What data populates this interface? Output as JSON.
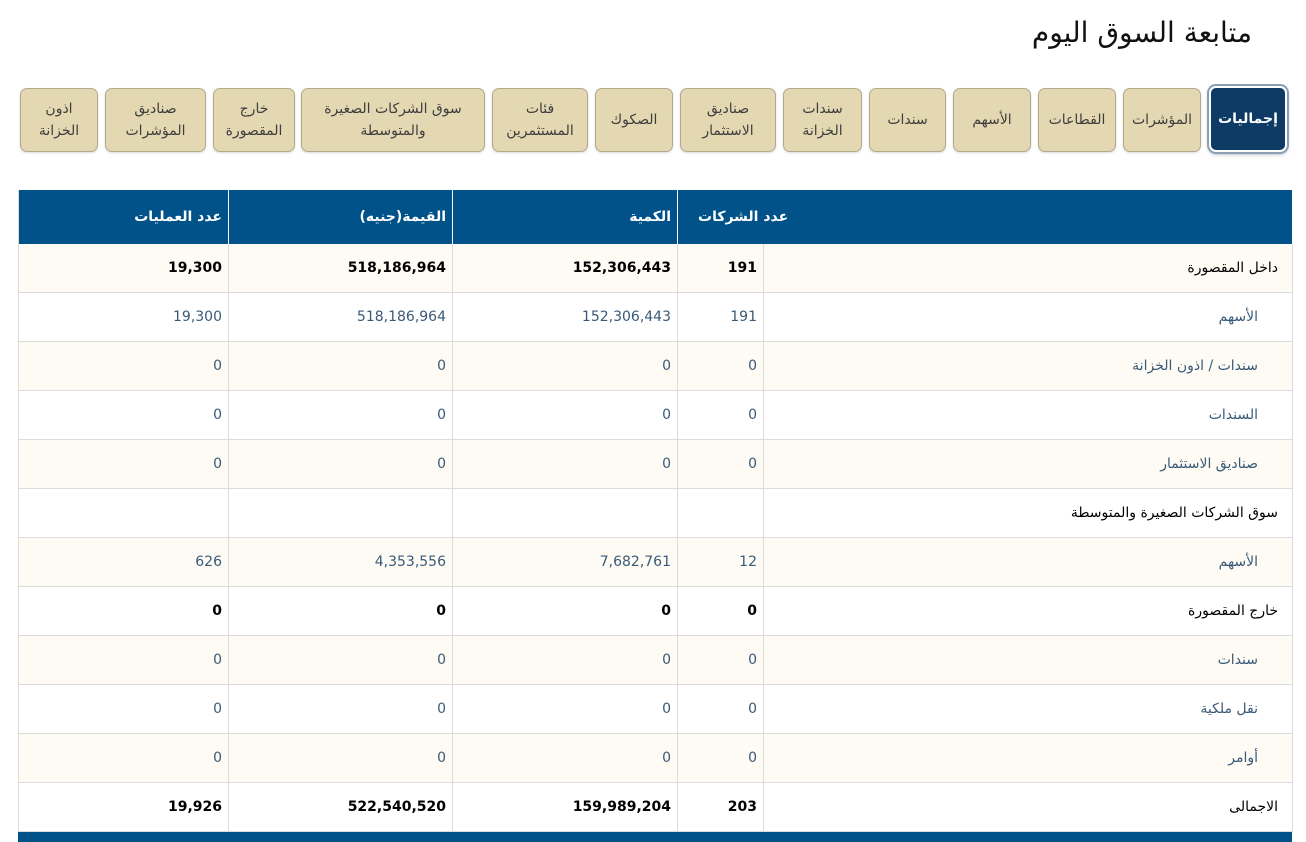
{
  "page_title": "متابعة السوق اليوم",
  "tabs": [
    {
      "label": "إجماليات",
      "active": true
    },
    {
      "label": "المؤشرات"
    },
    {
      "label": "القطاعات"
    },
    {
      "label": "الأسهم"
    },
    {
      "label": "سندات"
    },
    {
      "label": "سندات الخزانة"
    },
    {
      "label": "صناديق الاستثمار"
    },
    {
      "label": "الصكوك"
    },
    {
      "label": "فئات المستثمرين"
    },
    {
      "label": "سوق الشركات الصغيرة والمتوسطة"
    },
    {
      "label": "خارج المقصورة"
    },
    {
      "label": "صناديق المؤشرات"
    },
    {
      "label": "اذون الخزانة"
    }
  ],
  "table": {
    "headers": {
      "trades": "عدد العمليات",
      "value": "القيمة(جنيه)",
      "quantity": "الكمية",
      "companies": "عدد الشركات",
      "label": ""
    },
    "rows": [
      {
        "label": "داخل المقصورة",
        "companies": "191",
        "quantity": "152,306,443",
        "value": "518,186,964",
        "trades": "19,300"
      },
      {
        "label": "الأسهم",
        "companies": "191",
        "quantity": "152,306,443",
        "value": "518,186,964",
        "trades": "19,300"
      },
      {
        "label": "سندات / اذون الخزانة",
        "companies": "0",
        "quantity": "0",
        "value": "0",
        "trades": "0"
      },
      {
        "label": "السندات",
        "companies": "0",
        "quantity": "0",
        "value": "0",
        "trades": "0"
      },
      {
        "label": "صناديق الاستثمار",
        "companies": "0",
        "quantity": "0",
        "value": "0",
        "trades": "0"
      },
      {
        "label": "سوق الشركات الصغيرة والمتوسطة",
        "companies": "",
        "quantity": "",
        "value": "",
        "trades": ""
      },
      {
        "label": "الأسهم",
        "companies": "12",
        "quantity": "7,682,761",
        "value": "4,353,556",
        "trades": "626"
      },
      {
        "label": "خارج المقصورة",
        "companies": "0",
        "quantity": "0",
        "value": "0",
        "trades": "0"
      },
      {
        "label": "سندات",
        "companies": "0",
        "quantity": "0",
        "value": "0",
        "trades": "0"
      },
      {
        "label": "نقل ملكية",
        "companies": "0",
        "quantity": "0",
        "value": "0",
        "trades": "0"
      },
      {
        "label": "أوامر",
        "companies": "0",
        "quantity": "0",
        "value": "0",
        "trades": "0"
      },
      {
        "label": "الاجمالى",
        "companies": "203",
        "quantity": "159,989,204",
        "value": "522,540,520",
        "trades": "19,926"
      }
    ]
  },
  "colors": {
    "header_bg": "#02528a",
    "active_tab_bg": "#0e3a66",
    "tab_bg": "#e4d8b2",
    "row_alt_bg": "#fdfbf4"
  }
}
